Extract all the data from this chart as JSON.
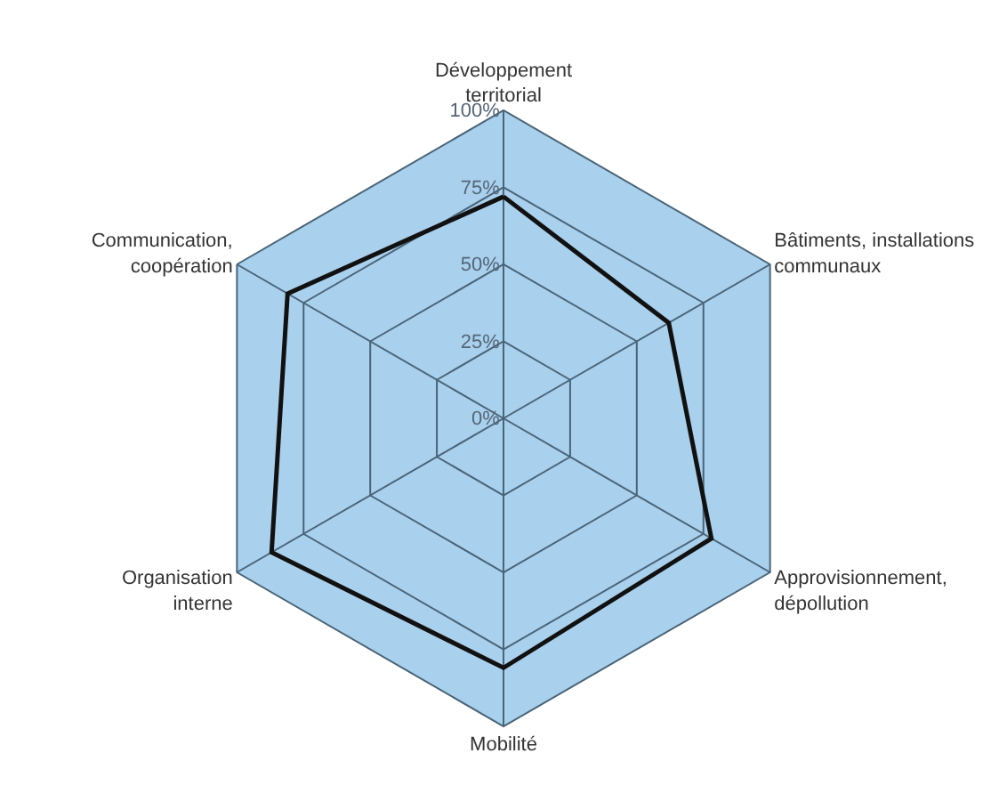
{
  "chart_data": {
    "type": "radar",
    "categories": [
      "Développement\nterritorial",
      "Bâtiments, installations\ncommunaux",
      "Approvisionnement,\ndépollution",
      "Mobilité",
      "Organisation\ninterne",
      "Communication,\ncoopération"
    ],
    "series": [
      {
        "color": "#111111",
        "values": [
          72,
          62,
          78,
          81,
          87,
          81
        ]
      }
    ],
    "ylim": [
      0,
      100
    ],
    "yticks": [
      {
        "value": 0,
        "label": "0%"
      },
      {
        "value": 25,
        "label": "25%"
      },
      {
        "value": 50,
        "label": "50%"
      },
      {
        "value": 75,
        "label": "75%"
      },
      {
        "value": 100,
        "label": "100%"
      }
    ],
    "grid": true,
    "marker": "none",
    "line_style": "solid"
  }
}
